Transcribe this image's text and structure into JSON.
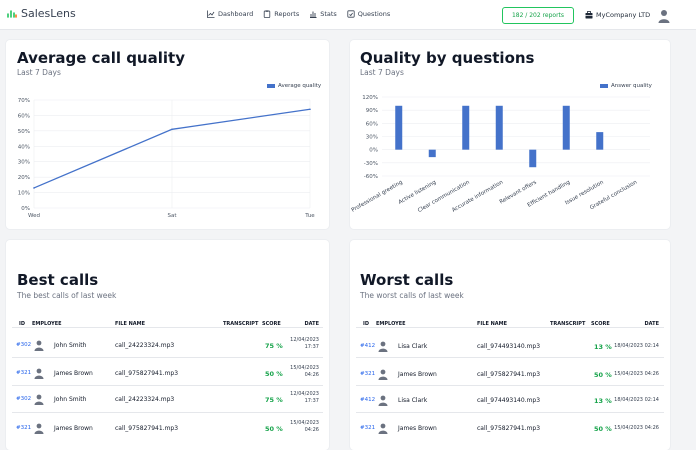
{
  "header": {
    "brand": "SalesLens",
    "nav": [
      {
        "label": "Dashboard",
        "icon": "chart-line-icon"
      },
      {
        "label": "Reports",
        "icon": "clipboard-icon"
      },
      {
        "label": "Stats",
        "icon": "bar-chart-icon"
      },
      {
        "label": "Questions",
        "icon": "question-box-icon"
      }
    ],
    "reports_count": "182 / 202 reports",
    "company": "MyCompany LTD"
  },
  "avg_card": {
    "title": "Average call quality",
    "subtitle": "Last 7 Days"
  },
  "qbq_card": {
    "title": "Quality by questions",
    "subtitle": "Last 7 Days"
  },
  "chart_data": [
    {
      "type": "line",
      "categories": [
        "Wed",
        "Sat",
        "Tue"
      ],
      "series": [
        {
          "name": "Average quality",
          "values": [
            13,
            51,
            64
          ],
          "color": "#4472ca"
        }
      ],
      "y_ticks": [
        "0%",
        "10%",
        "20%",
        "30%",
        "40%",
        "50%",
        "60%",
        "70%"
      ],
      "ylim": [
        0,
        70
      ],
      "legend": "top-right",
      "grid": true
    },
    {
      "type": "bar",
      "categories": [
        "Professional greeting",
        "Active listening",
        "Clear communication",
        "Accurate information",
        "Relevant offers",
        "Efficient handling",
        "Issue resolution",
        "Grateful conclusion"
      ],
      "series": [
        {
          "name": "Answer quality",
          "values": [
            100,
            -17,
            100,
            100,
            -40,
            100,
            40,
            0
          ],
          "color": "#4472ca"
        }
      ],
      "y_ticks": [
        "120%",
        "90%",
        "60%",
        "30%",
        "0%",
        "-30%",
        "-60%"
      ],
      "ylim": [
        -60,
        120
      ],
      "legend": "top-right",
      "grid": true
    }
  ],
  "table_headers": {
    "id": "ID",
    "employee": "EMPLOYEE",
    "file": "FILE NAME",
    "transcript": "TRANSCRIPT",
    "score": "SCORE",
    "date": "DATE"
  },
  "best": {
    "title": "Best calls",
    "subtitle": "The best calls of last week",
    "rows": [
      {
        "id": "#302",
        "employee": "John Smith",
        "file": "call_24223324.mp3",
        "score": "75 %",
        "date1": "12/04/2023",
        "date2": "17:37"
      },
      {
        "id": "#321",
        "employee": "James Brown",
        "file": "call_975827941.mp3",
        "score": "50 %",
        "date1": "15/04/2023",
        "date2": "04:26"
      },
      {
        "id": "#302",
        "employee": "John Smith",
        "file": "call_24223324.mp3",
        "score": "75 %",
        "date1": "12/04/2023",
        "date2": "17:37"
      },
      {
        "id": "#321",
        "employee": "James Brown",
        "file": "call_975827941.mp3",
        "score": "50 %",
        "date1": "15/04/2023",
        "date2": "04:26"
      }
    ]
  },
  "worst": {
    "title": "Worst calls",
    "subtitle": "The worst calls of last week",
    "rows": [
      {
        "id": "#412",
        "employee": "Lisa Clark",
        "file": "call_974493140.mp3",
        "score": "13 %",
        "date1": "18/04/2023 02:14",
        "date2": ""
      },
      {
        "id": "#321",
        "employee": "James Brown",
        "file": "call_975827941.mp3",
        "score": "50 %",
        "date1": "15/04/2023 04:26",
        "date2": ""
      },
      {
        "id": "#412",
        "employee": "Lisa Clark",
        "file": "call_974493140.mp3",
        "score": "13 %",
        "date1": "18/04/2023 02:14",
        "date2": ""
      },
      {
        "id": "#321",
        "employee": "James Brown",
        "file": "call_975827941.mp3",
        "score": "50 %",
        "date1": "15/04/2023 04:26",
        "date2": ""
      }
    ]
  }
}
